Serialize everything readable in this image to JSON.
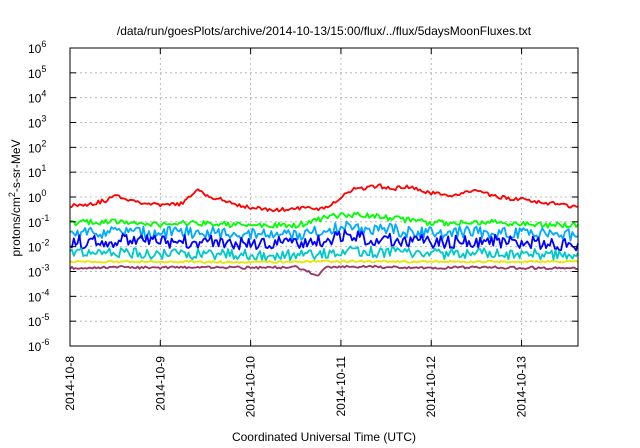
{
  "chart_data": {
    "type": "line",
    "title": "/data/run/goesPlots/archive/2014-10-13/15:00/flux/../flux/5daysMoonFluxes.txt",
    "xlabel": "Coordinated Universal Time (UTC)",
    "ylabel": "protons/cm²-s-sr-MeV",
    "ylabel_parts": [
      "protons/cm",
      "2",
      "-s-sr-MeV"
    ],
    "yscale": "log",
    "ylim": [
      1e-06,
      1000000.0
    ],
    "yticks": [
      {
        "value": 1e-06,
        "base": "10",
        "exp": "-6"
      },
      {
        "value": 1e-05,
        "base": "10",
        "exp": "-5"
      },
      {
        "value": 0.0001,
        "base": "10",
        "exp": "-4"
      },
      {
        "value": 0.001,
        "base": "10",
        "exp": "-3"
      },
      {
        "value": 0.01,
        "base": "10",
        "exp": "-2"
      },
      {
        "value": 0.1,
        "base": "10",
        "exp": "-1"
      },
      {
        "value": 1,
        "base": "10",
        "exp": "0"
      },
      {
        "value": 10,
        "base": "10",
        "exp": "1"
      },
      {
        "value": 100,
        "base": "10",
        "exp": "2"
      },
      {
        "value": 1000,
        "base": "10",
        "exp": "3"
      },
      {
        "value": 10000,
        "base": "10",
        "exp": "4"
      },
      {
        "value": 100000,
        "base": "10",
        "exp": "5"
      },
      {
        "value": 1000000,
        "base": "10",
        "exp": "6"
      }
    ],
    "xlim": [
      "2014-10-08",
      "2014-10-13 15:00"
    ],
    "xticks": [
      "2014-10-8",
      "2014-10-9",
      "2014-10-10",
      "2014-10-11",
      "2014-10-12",
      "2014-10-13"
    ],
    "grid": true,
    "legend": "none",
    "series": [
      {
        "color": "#ff0000",
        "points": [
          [
            "2014-10-08 00:00",
            0.45
          ],
          [
            "2014-10-08 06:00",
            0.55
          ],
          [
            "2014-10-08 10:00",
            0.75
          ],
          [
            "2014-10-08 12:00",
            1.2
          ],
          [
            "2014-10-08 15:00",
            0.85
          ],
          [
            "2014-10-08 18:00",
            0.65
          ],
          [
            "2014-10-09 00:00",
            0.45
          ],
          [
            "2014-10-09 06:00",
            0.55
          ],
          [
            "2014-10-09 10:00",
            2.0
          ],
          [
            "2014-10-09 12:00",
            1.2
          ],
          [
            "2014-10-09 15:00",
            0.9
          ],
          [
            "2014-10-09 18:00",
            0.6
          ],
          [
            "2014-10-10 00:00",
            0.38
          ],
          [
            "2014-10-10 06:00",
            0.3
          ],
          [
            "2014-10-10 12:00",
            0.32
          ],
          [
            "2014-10-10 15:00",
            0.45
          ],
          [
            "2014-10-10 18:00",
            0.3
          ],
          [
            "2014-10-10 21:00",
            0.45
          ],
          [
            "2014-10-11 00:00",
            1.0
          ],
          [
            "2014-10-11 03:00",
            2.0
          ],
          [
            "2014-10-11 06:00",
            2.2
          ],
          [
            "2014-10-11 10:00",
            2.8
          ],
          [
            "2014-10-11 14:00",
            2.2
          ],
          [
            "2014-10-11 18:00",
            2.5
          ],
          [
            "2014-10-12 00:00",
            1.4
          ],
          [
            "2014-10-12 06:00",
            1.2
          ],
          [
            "2014-10-12 10:00",
            1.5
          ],
          [
            "2014-10-12 12:00",
            2.0
          ],
          [
            "2014-10-12 16:00",
            1.1
          ],
          [
            "2014-10-12 20:00",
            0.9
          ],
          [
            "2014-10-13 00:00",
            0.8
          ],
          [
            "2014-10-13 06:00",
            0.6
          ],
          [
            "2014-10-13 12:00",
            0.45
          ],
          [
            "2014-10-13 15:00",
            0.4
          ]
        ]
      },
      {
        "color": "#00ff00",
        "points": [
          [
            "2014-10-08 00:00",
            0.09
          ],
          [
            "2014-10-08 12:00",
            0.1
          ],
          [
            "2014-10-09 00:00",
            0.08
          ],
          [
            "2014-10-09 12:00",
            0.09
          ],
          [
            "2014-10-10 00:00",
            0.07
          ],
          [
            "2014-10-10 12:00",
            0.07
          ],
          [
            "2014-10-11 00:00",
            0.2
          ],
          [
            "2014-10-11 12:00",
            0.15
          ],
          [
            "2014-10-12 00:00",
            0.09
          ],
          [
            "2014-10-12 12:00",
            0.1
          ],
          [
            "2014-10-13 00:00",
            0.08
          ],
          [
            "2014-10-13 15:00",
            0.07
          ]
        ]
      },
      {
        "color": "#00aaff",
        "points": [
          [
            "2014-10-08 00:00",
            0.035
          ],
          [
            "2014-10-08 12:00",
            0.04
          ],
          [
            "2014-10-09 00:00",
            0.035
          ],
          [
            "2014-10-09 12:00",
            0.04
          ],
          [
            "2014-10-10 00:00",
            0.03
          ],
          [
            "2014-10-10 12:00",
            0.03
          ],
          [
            "2014-10-11 00:00",
            0.06
          ],
          [
            "2014-10-11 12:00",
            0.05
          ],
          [
            "2014-10-12 00:00",
            0.035
          ],
          [
            "2014-10-12 12:00",
            0.04
          ],
          [
            "2014-10-13 00:00",
            0.035
          ],
          [
            "2014-10-13 15:00",
            0.03
          ]
        ]
      },
      {
        "color": "#0000ff",
        "points": [
          [
            "2014-10-08 00:00",
            0.015
          ],
          [
            "2014-10-08 12:00",
            0.018
          ],
          [
            "2014-10-09 00:00",
            0.015
          ],
          [
            "2014-10-09 12:00",
            0.017
          ],
          [
            "2014-10-10 00:00",
            0.013
          ],
          [
            "2014-10-10 12:00",
            0.013
          ],
          [
            "2014-10-11 00:00",
            0.025
          ],
          [
            "2014-10-11 12:00",
            0.02
          ],
          [
            "2014-10-12 00:00",
            0.016
          ],
          [
            "2014-10-12 12:00",
            0.017
          ],
          [
            "2014-10-13 00:00",
            0.015
          ],
          [
            "2014-10-13 15:00",
            0.013
          ]
        ]
      },
      {
        "color": "#00c8c8",
        "points": [
          [
            "2014-10-08 00:00",
            0.005
          ],
          [
            "2014-10-08 12:00",
            0.0055
          ],
          [
            "2014-10-09 00:00",
            0.005
          ],
          [
            "2014-10-09 12:00",
            0.0052
          ],
          [
            "2014-10-10 00:00",
            0.0045
          ],
          [
            "2014-10-10 12:00",
            0.0045
          ],
          [
            "2014-10-11 00:00",
            0.0065
          ],
          [
            "2014-10-11 12:00",
            0.006
          ],
          [
            "2014-10-12 00:00",
            0.0052
          ],
          [
            "2014-10-12 12:00",
            0.0055
          ],
          [
            "2014-10-13 00:00",
            0.005
          ],
          [
            "2014-10-13 15:00",
            0.0048
          ]
        ]
      },
      {
        "color": "#e6e600",
        "points": [
          [
            "2014-10-08 00:00",
            0.0025
          ],
          [
            "2014-10-09 00:00",
            0.0025
          ],
          [
            "2014-10-10 00:00",
            0.0024
          ],
          [
            "2014-10-11 00:00",
            0.0026
          ],
          [
            "2014-10-12 00:00",
            0.0025
          ],
          [
            "2014-10-13 00:00",
            0.0025
          ],
          [
            "2014-10-13 15:00",
            0.0025
          ]
        ]
      },
      {
        "color": "#993366",
        "points": [
          [
            "2014-10-08 00:00",
            0.0014
          ],
          [
            "2014-10-08 12:00",
            0.0015
          ],
          [
            "2014-10-09 00:00",
            0.0014
          ],
          [
            "2014-10-09 12:00",
            0.0015
          ],
          [
            "2014-10-10 00:00",
            0.0014
          ],
          [
            "2014-10-10 12:00",
            0.0015
          ],
          [
            "2014-10-10 18:00",
            0.0007
          ],
          [
            "2014-10-10 20:00",
            0.0014
          ],
          [
            "2014-10-11 00:00",
            0.0016
          ],
          [
            "2014-10-11 12:00",
            0.0015
          ],
          [
            "2014-10-12 00:00",
            0.0014
          ],
          [
            "2014-10-12 12:00",
            0.0015
          ],
          [
            "2014-10-13 00:00",
            0.0014
          ],
          [
            "2014-10-13 15:00",
            0.0014
          ]
        ]
      }
    ]
  }
}
